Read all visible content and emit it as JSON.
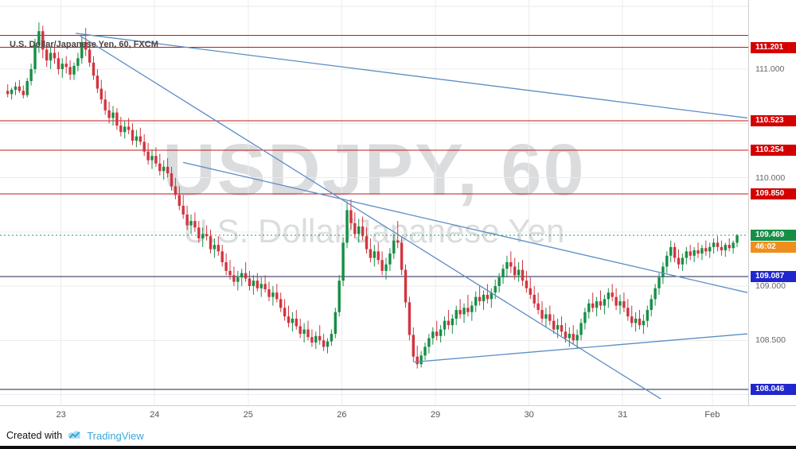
{
  "header": {
    "symbol_title": "U.S. Dollar/Japanese Yen, 60, FXCM"
  },
  "watermark": {
    "line1": "USDJPY, 60",
    "line2": "U.S. Dollar/Japanese Yen"
  },
  "footer": {
    "created_with": "Created with",
    "brand": "TradingView"
  },
  "colors": {
    "up": "#168f46",
    "down": "#d23540",
    "grid": "#ececec",
    "level_red": "#c01818",
    "level_navy": "#20224e",
    "badge_red": "#d40000",
    "badge_blue": "#2127cd",
    "badge_green": "#168f46",
    "badge_countdown": "#ee8f1d",
    "trendline": "#5c8dc5",
    "current_dotted": "#1c9e57"
  },
  "chart_data": {
    "type": "candlestick",
    "symbol": "USDJPY",
    "interval_minutes": 60,
    "feed": "FXCM",
    "price_range_visible": [
      107.9,
      111.64
    ],
    "ohlc_format": "[open, high, low, close]",
    "time_axis": [
      {
        "label": "23",
        "i": 14
      },
      {
        "label": "24",
        "i": 38
      },
      {
        "label": "25",
        "i": 62
      },
      {
        "label": "26",
        "i": 86
      },
      {
        "label": "29",
        "i": 110
      },
      {
        "label": "30",
        "i": 134
      },
      {
        "label": "31",
        "i": 158
      },
      {
        "label": "Feb",
        "i": 181
      }
    ],
    "price_gridlines": [
      111.0,
      110.5,
      110.0,
      109.5,
      109.0,
      108.5,
      108.0
    ],
    "price_axis_labels": [
      {
        "text": "111.000",
        "price": 111.0
      },
      {
        "text": "110.000",
        "price": 110.0
      },
      {
        "text": "109.000",
        "price": 109.0
      },
      {
        "text": "108.500",
        "price": 108.5
      }
    ],
    "levels": [
      {
        "price": 111.31,
        "color": "red",
        "label": ""
      },
      {
        "price": 111.201,
        "color": "red",
        "label": "111.201"
      },
      {
        "price": 110.523,
        "color": "red",
        "label": "110.523"
      },
      {
        "price": 110.254,
        "color": "red",
        "label": "110.254"
      },
      {
        "price": 109.85,
        "color": "red",
        "label": "109.850"
      },
      {
        "price": 109.087,
        "color": "navy",
        "label": "109.087"
      },
      {
        "price": 108.046,
        "color": "navy",
        "label": "108.046"
      }
    ],
    "current_price": {
      "value": "109.469",
      "price": 109.469,
      "countdown": "46:02"
    },
    "trendlines": [
      {
        "from": {
          "i": 17.8,
          "p": 111.33
        },
        "to": {
          "i": 190,
          "p": 110.55
        }
      },
      {
        "from": {
          "i": 45.3,
          "p": 110.14
        },
        "to": {
          "i": 190,
          "p": 108.94
        }
      },
      {
        "from": {
          "i": 18.8,
          "p": 111.31
        },
        "to": {
          "i": 167.8,
          "p": 107.96
        }
      },
      {
        "from": {
          "i": 104.5,
          "p": 108.3
        },
        "to": {
          "i": 190,
          "p": 108.56
        }
      }
    ],
    "candles": [
      [
        110.8,
        110.86,
        110.74,
        110.77
      ],
      [
        110.77,
        110.83,
        110.72,
        110.81
      ],
      [
        110.81,
        110.88,
        110.76,
        110.84
      ],
      [
        110.84,
        110.9,
        110.78,
        110.8
      ],
      [
        110.8,
        110.85,
        110.73,
        110.76
      ],
      [
        110.76,
        110.92,
        110.74,
        110.89
      ],
      [
        110.89,
        111.05,
        110.85,
        111.0
      ],
      [
        111.0,
        111.28,
        110.96,
        111.22
      ],
      [
        111.22,
        111.43,
        111.15,
        111.35
      ],
      [
        111.35,
        111.4,
        111.1,
        111.18
      ],
      [
        111.18,
        111.25,
        111.02,
        111.08
      ],
      [
        111.08,
        111.2,
        111.0,
        111.15
      ],
      [
        111.15,
        111.22,
        111.05,
        111.1
      ],
      [
        111.1,
        111.16,
        110.95,
        111.0
      ],
      [
        111.0,
        111.1,
        110.92,
        111.05
      ],
      [
        111.05,
        111.12,
        110.96,
        111.02
      ],
      [
        111.02,
        111.08,
        110.9,
        110.95
      ],
      [
        110.95,
        111.06,
        110.9,
        111.03
      ],
      [
        111.03,
        111.15,
        110.98,
        111.1
      ],
      [
        111.1,
        111.3,
        111.05,
        111.25
      ],
      [
        111.25,
        111.38,
        111.12,
        111.18
      ],
      [
        111.18,
        111.24,
        111.02,
        111.06
      ],
      [
        111.06,
        111.12,
        110.9,
        110.94
      ],
      [
        110.94,
        111.0,
        110.78,
        110.82
      ],
      [
        110.82,
        110.9,
        110.68,
        110.72
      ],
      [
        110.72,
        110.8,
        110.58,
        110.62
      ],
      [
        110.62,
        110.7,
        110.5,
        110.55
      ],
      [
        110.55,
        110.66,
        110.48,
        110.6
      ],
      [
        110.6,
        110.64,
        110.44,
        110.48
      ],
      [
        110.48,
        110.56,
        110.38,
        110.42
      ],
      [
        110.42,
        110.52,
        110.36,
        110.47
      ],
      [
        110.47,
        110.55,
        110.4,
        110.44
      ],
      [
        110.44,
        110.5,
        110.3,
        110.34
      ],
      [
        110.34,
        110.44,
        110.28,
        110.38
      ],
      [
        110.38,
        110.46,
        110.3,
        110.33
      ],
      [
        110.33,
        110.4,
        110.2,
        110.24
      ],
      [
        110.24,
        110.32,
        110.12,
        110.16
      ],
      [
        110.16,
        110.26,
        110.08,
        110.2
      ],
      [
        110.2,
        110.28,
        110.1,
        110.13
      ],
      [
        110.13,
        110.22,
        110.02,
        110.06
      ],
      [
        110.06,
        110.16,
        109.98,
        110.1
      ],
      [
        110.1,
        110.18,
        110.0,
        110.04
      ],
      [
        110.04,
        110.1,
        109.88,
        109.92
      ],
      [
        109.92,
        110.0,
        109.8,
        109.84
      ],
      [
        109.84,
        109.92,
        109.7,
        109.74
      ],
      [
        109.74,
        109.84,
        109.62,
        109.66
      ],
      [
        109.66,
        109.74,
        109.52,
        109.56
      ],
      [
        109.56,
        109.66,
        109.48,
        109.6
      ],
      [
        109.6,
        109.68,
        109.5,
        109.54
      ],
      [
        109.54,
        109.6,
        109.4,
        109.44
      ],
      [
        109.44,
        109.54,
        109.36,
        109.48
      ],
      [
        109.48,
        109.56,
        109.42,
        109.46
      ],
      [
        109.46,
        109.52,
        109.3,
        109.34
      ],
      [
        109.34,
        109.44,
        109.26,
        109.38
      ],
      [
        109.38,
        109.46,
        109.28,
        109.32
      ],
      [
        109.32,
        109.38,
        109.18,
        109.22
      ],
      [
        109.22,
        109.3,
        109.1,
        109.14
      ],
      [
        109.14,
        109.24,
        109.06,
        109.1
      ],
      [
        109.1,
        109.18,
        109.0,
        109.04
      ],
      [
        109.04,
        109.14,
        108.96,
        109.08
      ],
      [
        109.08,
        109.16,
        109.0,
        109.12
      ],
      [
        109.12,
        109.22,
        109.04,
        109.07
      ],
      [
        109.07,
        109.14,
        108.96,
        109.0
      ],
      [
        109.0,
        109.1,
        108.92,
        109.05
      ],
      [
        109.05,
        109.12,
        108.95,
        108.98
      ],
      [
        108.98,
        109.08,
        108.9,
        109.02
      ],
      [
        109.02,
        109.1,
        108.94,
        108.97
      ],
      [
        108.97,
        109.04,
        108.86,
        108.9
      ],
      [
        108.9,
        109.0,
        108.82,
        108.94
      ],
      [
        108.94,
        109.02,
        108.85,
        108.88
      ],
      [
        108.88,
        108.94,
        108.76,
        108.8
      ],
      [
        108.8,
        108.88,
        108.68,
        108.72
      ],
      [
        108.72,
        108.82,
        108.62,
        108.66
      ],
      [
        108.66,
        108.76,
        108.58,
        108.7
      ],
      [
        108.7,
        108.78,
        108.6,
        108.63
      ],
      [
        108.63,
        108.7,
        108.52,
        108.56
      ],
      [
        108.56,
        108.66,
        108.48,
        108.6
      ],
      [
        108.6,
        108.68,
        108.5,
        108.53
      ],
      [
        108.53,
        108.6,
        108.44,
        108.48
      ],
      [
        108.48,
        108.58,
        108.42,
        108.54
      ],
      [
        108.54,
        108.64,
        108.46,
        108.5
      ],
      [
        108.5,
        108.56,
        108.4,
        108.44
      ],
      [
        108.44,
        108.52,
        108.38,
        108.49
      ],
      [
        108.49,
        108.6,
        108.45,
        108.56
      ],
      [
        108.56,
        108.8,
        108.52,
        108.76
      ],
      [
        108.76,
        109.1,
        108.72,
        109.05
      ],
      [
        109.05,
        109.45,
        109.0,
        109.4
      ],
      [
        109.4,
        109.78,
        109.35,
        109.7
      ],
      [
        109.7,
        109.8,
        109.52,
        109.58
      ],
      [
        109.58,
        109.68,
        109.44,
        109.48
      ],
      [
        109.48,
        109.62,
        109.4,
        109.55
      ],
      [
        109.55,
        109.64,
        109.42,
        109.46
      ],
      [
        109.46,
        109.54,
        109.3,
        109.34
      ],
      [
        109.34,
        109.44,
        109.22,
        109.26
      ],
      [
        109.26,
        109.38,
        109.18,
        109.32
      ],
      [
        109.32,
        109.4,
        109.2,
        109.24
      ],
      [
        109.24,
        109.32,
        109.1,
        109.14
      ],
      [
        109.14,
        109.26,
        109.06,
        109.2
      ],
      [
        109.2,
        109.35,
        109.14,
        109.3
      ],
      [
        109.3,
        109.48,
        109.25,
        109.42
      ],
      [
        109.42,
        109.6,
        109.35,
        109.4
      ],
      [
        109.4,
        109.46,
        109.1,
        109.15
      ],
      [
        109.15,
        109.2,
        108.8,
        108.85
      ],
      [
        108.85,
        108.9,
        108.5,
        108.55
      ],
      [
        108.55,
        108.62,
        108.3,
        108.35
      ],
      [
        108.35,
        108.45,
        108.24,
        108.28
      ],
      [
        108.28,
        108.4,
        108.25,
        108.36
      ],
      [
        108.36,
        108.48,
        108.32,
        108.44
      ],
      [
        108.44,
        108.56,
        108.38,
        108.52
      ],
      [
        108.52,
        108.62,
        108.46,
        108.58
      ],
      [
        108.58,
        108.68,
        108.5,
        108.54
      ],
      [
        108.54,
        108.64,
        108.48,
        108.6
      ],
      [
        108.6,
        108.72,
        108.54,
        108.68
      ],
      [
        108.68,
        108.78,
        108.6,
        108.64
      ],
      [
        108.64,
        108.74,
        108.56,
        108.7
      ],
      [
        108.7,
        108.82,
        108.64,
        108.78
      ],
      [
        108.78,
        108.88,
        108.7,
        108.74
      ],
      [
        108.74,
        108.84,
        108.66,
        108.8
      ],
      [
        108.8,
        108.92,
        108.72,
        108.76
      ],
      [
        108.76,
        108.86,
        108.68,
        108.82
      ],
      [
        108.82,
        108.95,
        108.76,
        108.9
      ],
      [
        108.9,
        109.0,
        108.82,
        108.86
      ],
      [
        108.86,
        108.96,
        108.78,
        108.92
      ],
      [
        108.92,
        109.02,
        108.84,
        108.88
      ],
      [
        108.88,
        108.98,
        108.8,
        108.94
      ],
      [
        108.94,
        109.06,
        108.88,
        109.0
      ],
      [
        109.0,
        109.12,
        108.94,
        109.08
      ],
      [
        109.08,
        109.2,
        109.02,
        109.16
      ],
      [
        109.16,
        109.28,
        109.08,
        109.22
      ],
      [
        109.22,
        109.32,
        109.12,
        109.18
      ],
      [
        109.18,
        109.26,
        109.06,
        109.1
      ],
      [
        109.1,
        109.22,
        109.04,
        109.15
      ],
      [
        109.15,
        109.24,
        109.0,
        109.05
      ],
      [
        109.05,
        109.14,
        108.94,
        108.98
      ],
      [
        108.98,
        109.08,
        108.88,
        108.92
      ],
      [
        108.92,
        109.0,
        108.8,
        108.84
      ],
      [
        108.84,
        108.94,
        108.74,
        108.78
      ],
      [
        108.78,
        108.86,
        108.66,
        108.7
      ],
      [
        108.7,
        108.8,
        108.62,
        108.74
      ],
      [
        108.74,
        108.82,
        108.64,
        108.68
      ],
      [
        108.68,
        108.74,
        108.56,
        108.6
      ],
      [
        108.6,
        108.7,
        108.52,
        108.64
      ],
      [
        108.64,
        108.72,
        108.54,
        108.58
      ],
      [
        108.58,
        108.66,
        108.48,
        108.52
      ],
      [
        108.52,
        108.62,
        108.44,
        108.56
      ],
      [
        108.56,
        108.64,
        108.46,
        108.5
      ],
      [
        108.5,
        108.6,
        108.42,
        108.55
      ],
      [
        108.55,
        108.7,
        108.5,
        108.66
      ],
      [
        108.66,
        108.8,
        108.6,
        108.76
      ],
      [
        108.76,
        108.88,
        108.7,
        108.84
      ],
      [
        108.84,
        108.94,
        108.76,
        108.8
      ],
      [
        108.8,
        108.9,
        108.72,
        108.86
      ],
      [
        108.86,
        108.96,
        108.78,
        108.82
      ],
      [
        108.82,
        108.92,
        108.74,
        108.88
      ],
      [
        108.88,
        108.98,
        108.8,
        108.94
      ],
      [
        108.94,
        109.02,
        108.86,
        108.9
      ],
      [
        108.9,
        108.98,
        108.78,
        108.82
      ],
      [
        108.82,
        108.92,
        108.74,
        108.86
      ],
      [
        108.86,
        108.94,
        108.76,
        108.8
      ],
      [
        108.8,
        108.88,
        108.68,
        108.72
      ],
      [
        108.72,
        108.82,
        108.62,
        108.66
      ],
      [
        108.66,
        108.76,
        108.58,
        108.7
      ],
      [
        108.7,
        108.78,
        108.6,
        108.64
      ],
      [
        108.64,
        108.74,
        108.56,
        108.68
      ],
      [
        108.68,
        108.82,
        108.62,
        108.78
      ],
      [
        108.78,
        108.92,
        108.72,
        108.88
      ],
      [
        108.88,
        109.02,
        108.82,
        108.98
      ],
      [
        108.98,
        109.12,
        108.92,
        109.08
      ],
      [
        109.08,
        109.22,
        109.02,
        109.18
      ],
      [
        109.18,
        109.32,
        109.12,
        109.28
      ],
      [
        109.28,
        109.42,
        109.22,
        109.36
      ],
      [
        109.36,
        109.4,
        109.22,
        109.26
      ],
      [
        109.26,
        109.34,
        109.16,
        109.2
      ],
      [
        109.2,
        109.3,
        109.14,
        109.26
      ],
      [
        109.26,
        109.36,
        109.2,
        109.32
      ],
      [
        109.32,
        109.38,
        109.24,
        109.28
      ],
      [
        109.28,
        109.36,
        109.22,
        109.33
      ],
      [
        109.33,
        109.4,
        109.26,
        109.3
      ],
      [
        109.3,
        109.38,
        109.24,
        109.35
      ],
      [
        109.35,
        109.42,
        109.28,
        109.32
      ],
      [
        109.32,
        109.4,
        109.26,
        109.36
      ],
      [
        109.36,
        109.44,
        109.3,
        109.4
      ],
      [
        109.4,
        109.46,
        109.32,
        109.36
      ],
      [
        109.36,
        109.42,
        109.28,
        109.33
      ],
      [
        109.33,
        109.4,
        109.27,
        109.38
      ],
      [
        109.38,
        109.44,
        109.32,
        109.35
      ],
      [
        109.35,
        109.42,
        109.3,
        109.4
      ],
      [
        109.4,
        109.48,
        109.36,
        109.47
      ]
    ]
  }
}
